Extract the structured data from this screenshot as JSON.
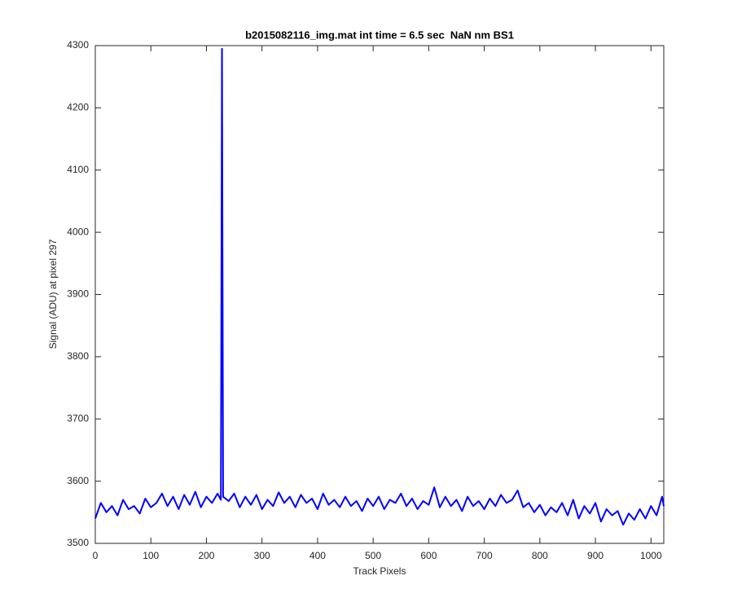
{
  "chart_data": {
    "type": "line",
    "title": "b2015082116_img.mat int time = 6.5 sec  NaN nm BS1",
    "x_label": "Track Pixels",
    "y_label": "Signal (ADU) at pixel 297",
    "xlim": [
      0,
      1023
    ],
    "ylim": [
      3500,
      4300
    ],
    "xticks": [
      0,
      100,
      200,
      300,
      400,
      500,
      600,
      700,
      800,
      900,
      1000
    ],
    "yticks": [
      3500,
      3600,
      3700,
      3800,
      3900,
      4000,
      4100,
      4200,
      4300
    ],
    "grid": false,
    "series": [
      {
        "color": "#0000ff",
        "x": [
          0,
          10,
          20,
          30,
          40,
          50,
          60,
          70,
          80,
          90,
          100,
          110,
          120,
          130,
          140,
          150,
          160,
          170,
          180,
          190,
          200,
          210,
          220,
          226,
          228,
          230,
          240,
          250,
          260,
          270,
          280,
          290,
          300,
          310,
          320,
          330,
          340,
          350,
          360,
          370,
          380,
          390,
          400,
          410,
          420,
          430,
          440,
          450,
          460,
          470,
          480,
          490,
          500,
          510,
          520,
          530,
          540,
          550,
          560,
          570,
          580,
          590,
          600,
          610,
          620,
          630,
          640,
          650,
          660,
          670,
          680,
          690,
          700,
          710,
          720,
          730,
          740,
          750,
          760,
          770,
          780,
          790,
          800,
          810,
          820,
          830,
          840,
          850,
          860,
          870,
          880,
          890,
          900,
          910,
          920,
          930,
          940,
          950,
          960,
          970,
          980,
          990,
          1000,
          1010,
          1020,
          1023
        ],
        "values": [
          3540,
          3565,
          3550,
          3560,
          3545,
          3570,
          3555,
          3560,
          3548,
          3572,
          3558,
          3565,
          3580,
          3560,
          3575,
          3555,
          3578,
          3562,
          3583,
          3558,
          3575,
          3565,
          3580,
          3570,
          4295,
          3575,
          3568,
          3580,
          3558,
          3575,
          3562,
          3578,
          3555,
          3570,
          3560,
          3582,
          3565,
          3575,
          3558,
          3578,
          3565,
          3572,
          3555,
          3580,
          3562,
          3570,
          3558,
          3575,
          3560,
          3568,
          3552,
          3572,
          3560,
          3575,
          3555,
          3570,
          3565,
          3580,
          3560,
          3572,
          3555,
          3568,
          3562,
          3590,
          3558,
          3575,
          3560,
          3570,
          3552,
          3575,
          3560,
          3568,
          3555,
          3572,
          3560,
          3578,
          3565,
          3570,
          3585,
          3558,
          3565,
          3550,
          3562,
          3545,
          3558,
          3550,
          3565,
          3545,
          3570,
          3540,
          3560,
          3548,
          3565,
          3535,
          3555,
          3545,
          3552,
          3530,
          3548,
          3538,
          3555,
          3540,
          3560,
          3545,
          3575,
          3560
        ]
      }
    ]
  }
}
